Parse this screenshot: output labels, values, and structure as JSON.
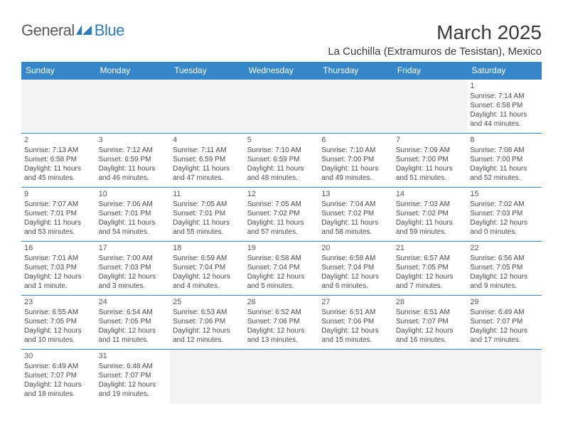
{
  "logo": {
    "text1": "General",
    "text2": "Blue"
  },
  "title": "March 2025",
  "location": "La Cuchilla (Extramuros de Tesistan), Mexico",
  "header_bg": "#3587c9",
  "header_fg": "#ffffff",
  "border_color": "#3587c9",
  "empty_bg": "#f3f3f3",
  "text_color": "#4a4a4a",
  "title_color": "#3a3a3a",
  "title_fontsize": 28,
  "location_fontsize": 15,
  "dayheader_fontsize": 12,
  "cell_fontsize": 10,
  "days": [
    "Sunday",
    "Monday",
    "Tuesday",
    "Wednesday",
    "Thursday",
    "Friday",
    "Saturday"
  ],
  "weeks": [
    [
      null,
      null,
      null,
      null,
      null,
      null,
      {
        "n": "1",
        "sr": "Sunrise: 7:14 AM",
        "ss": "Sunset: 6:58 PM",
        "d1": "Daylight: 11 hours",
        "d2": "and 44 minutes."
      }
    ],
    [
      {
        "n": "2",
        "sr": "Sunrise: 7:13 AM",
        "ss": "Sunset: 6:58 PM",
        "d1": "Daylight: 11 hours",
        "d2": "and 45 minutes."
      },
      {
        "n": "3",
        "sr": "Sunrise: 7:12 AM",
        "ss": "Sunset: 6:59 PM",
        "d1": "Daylight: 11 hours",
        "d2": "and 46 minutes."
      },
      {
        "n": "4",
        "sr": "Sunrise: 7:11 AM",
        "ss": "Sunset: 6:59 PM",
        "d1": "Daylight: 11 hours",
        "d2": "and 47 minutes."
      },
      {
        "n": "5",
        "sr": "Sunrise: 7:10 AM",
        "ss": "Sunset: 6:59 PM",
        "d1": "Daylight: 11 hours",
        "d2": "and 48 minutes."
      },
      {
        "n": "6",
        "sr": "Sunrise: 7:10 AM",
        "ss": "Sunset: 7:00 PM",
        "d1": "Daylight: 11 hours",
        "d2": "and 49 minutes."
      },
      {
        "n": "7",
        "sr": "Sunrise: 7:09 AM",
        "ss": "Sunset: 7:00 PM",
        "d1": "Daylight: 11 hours",
        "d2": "and 51 minutes."
      },
      {
        "n": "8",
        "sr": "Sunrise: 7:08 AM",
        "ss": "Sunset: 7:00 PM",
        "d1": "Daylight: 11 hours",
        "d2": "and 52 minutes."
      }
    ],
    [
      {
        "n": "9",
        "sr": "Sunrise: 7:07 AM",
        "ss": "Sunset: 7:01 PM",
        "d1": "Daylight: 11 hours",
        "d2": "and 53 minutes."
      },
      {
        "n": "10",
        "sr": "Sunrise: 7:06 AM",
        "ss": "Sunset: 7:01 PM",
        "d1": "Daylight: 11 hours",
        "d2": "and 54 minutes."
      },
      {
        "n": "11",
        "sr": "Sunrise: 7:05 AM",
        "ss": "Sunset: 7:01 PM",
        "d1": "Daylight: 11 hours",
        "d2": "and 55 minutes."
      },
      {
        "n": "12",
        "sr": "Sunrise: 7:05 AM",
        "ss": "Sunset: 7:02 PM",
        "d1": "Daylight: 11 hours",
        "d2": "and 57 minutes."
      },
      {
        "n": "13",
        "sr": "Sunrise: 7:04 AM",
        "ss": "Sunset: 7:02 PM",
        "d1": "Daylight: 11 hours",
        "d2": "and 58 minutes."
      },
      {
        "n": "14",
        "sr": "Sunrise: 7:03 AM",
        "ss": "Sunset: 7:02 PM",
        "d1": "Daylight: 11 hours",
        "d2": "and 59 minutes."
      },
      {
        "n": "15",
        "sr": "Sunrise: 7:02 AM",
        "ss": "Sunset: 7:03 PM",
        "d1": "Daylight: 12 hours",
        "d2": "and 0 minutes."
      }
    ],
    [
      {
        "n": "16",
        "sr": "Sunrise: 7:01 AM",
        "ss": "Sunset: 7:03 PM",
        "d1": "Daylight: 12 hours",
        "d2": "and 1 minute."
      },
      {
        "n": "17",
        "sr": "Sunrise: 7:00 AM",
        "ss": "Sunset: 7:03 PM",
        "d1": "Daylight: 12 hours",
        "d2": "and 3 minutes."
      },
      {
        "n": "18",
        "sr": "Sunrise: 6:59 AM",
        "ss": "Sunset: 7:04 PM",
        "d1": "Daylight: 12 hours",
        "d2": "and 4 minutes."
      },
      {
        "n": "19",
        "sr": "Sunrise: 6:58 AM",
        "ss": "Sunset: 7:04 PM",
        "d1": "Daylight: 12 hours",
        "d2": "and 5 minutes."
      },
      {
        "n": "20",
        "sr": "Sunrise: 6:58 AM",
        "ss": "Sunset: 7:04 PM",
        "d1": "Daylight: 12 hours",
        "d2": "and 6 minutes."
      },
      {
        "n": "21",
        "sr": "Sunrise: 6:57 AM",
        "ss": "Sunset: 7:05 PM",
        "d1": "Daylight: 12 hours",
        "d2": "and 7 minutes."
      },
      {
        "n": "22",
        "sr": "Sunrise: 6:56 AM",
        "ss": "Sunset: 7:05 PM",
        "d1": "Daylight: 12 hours",
        "d2": "and 9 minutes."
      }
    ],
    [
      {
        "n": "23",
        "sr": "Sunrise: 6:55 AM",
        "ss": "Sunset: 7:05 PM",
        "d1": "Daylight: 12 hours",
        "d2": "and 10 minutes."
      },
      {
        "n": "24",
        "sr": "Sunrise: 6:54 AM",
        "ss": "Sunset: 7:05 PM",
        "d1": "Daylight: 12 hours",
        "d2": "and 11 minutes."
      },
      {
        "n": "25",
        "sr": "Sunrise: 6:53 AM",
        "ss": "Sunset: 7:06 PM",
        "d1": "Daylight: 12 hours",
        "d2": "and 12 minutes."
      },
      {
        "n": "26",
        "sr": "Sunrise: 6:52 AM",
        "ss": "Sunset: 7:06 PM",
        "d1": "Daylight: 12 hours",
        "d2": "and 13 minutes."
      },
      {
        "n": "27",
        "sr": "Sunrise: 6:51 AM",
        "ss": "Sunset: 7:06 PM",
        "d1": "Daylight: 12 hours",
        "d2": "and 15 minutes."
      },
      {
        "n": "28",
        "sr": "Sunrise: 6:51 AM",
        "ss": "Sunset: 7:07 PM",
        "d1": "Daylight: 12 hours",
        "d2": "and 16 minutes."
      },
      {
        "n": "29",
        "sr": "Sunrise: 6:49 AM",
        "ss": "Sunset: 7:07 PM",
        "d1": "Daylight: 12 hours",
        "d2": "and 17 minutes."
      }
    ],
    [
      {
        "n": "30",
        "sr": "Sunrise: 6:49 AM",
        "ss": "Sunset: 7:07 PM",
        "d1": "Daylight: 12 hours",
        "d2": "and 18 minutes."
      },
      {
        "n": "31",
        "sr": "Sunrise: 6:48 AM",
        "ss": "Sunset: 7:07 PM",
        "d1": "Daylight: 12 hours",
        "d2": "and 19 minutes."
      },
      null,
      null,
      null,
      null,
      null
    ]
  ]
}
